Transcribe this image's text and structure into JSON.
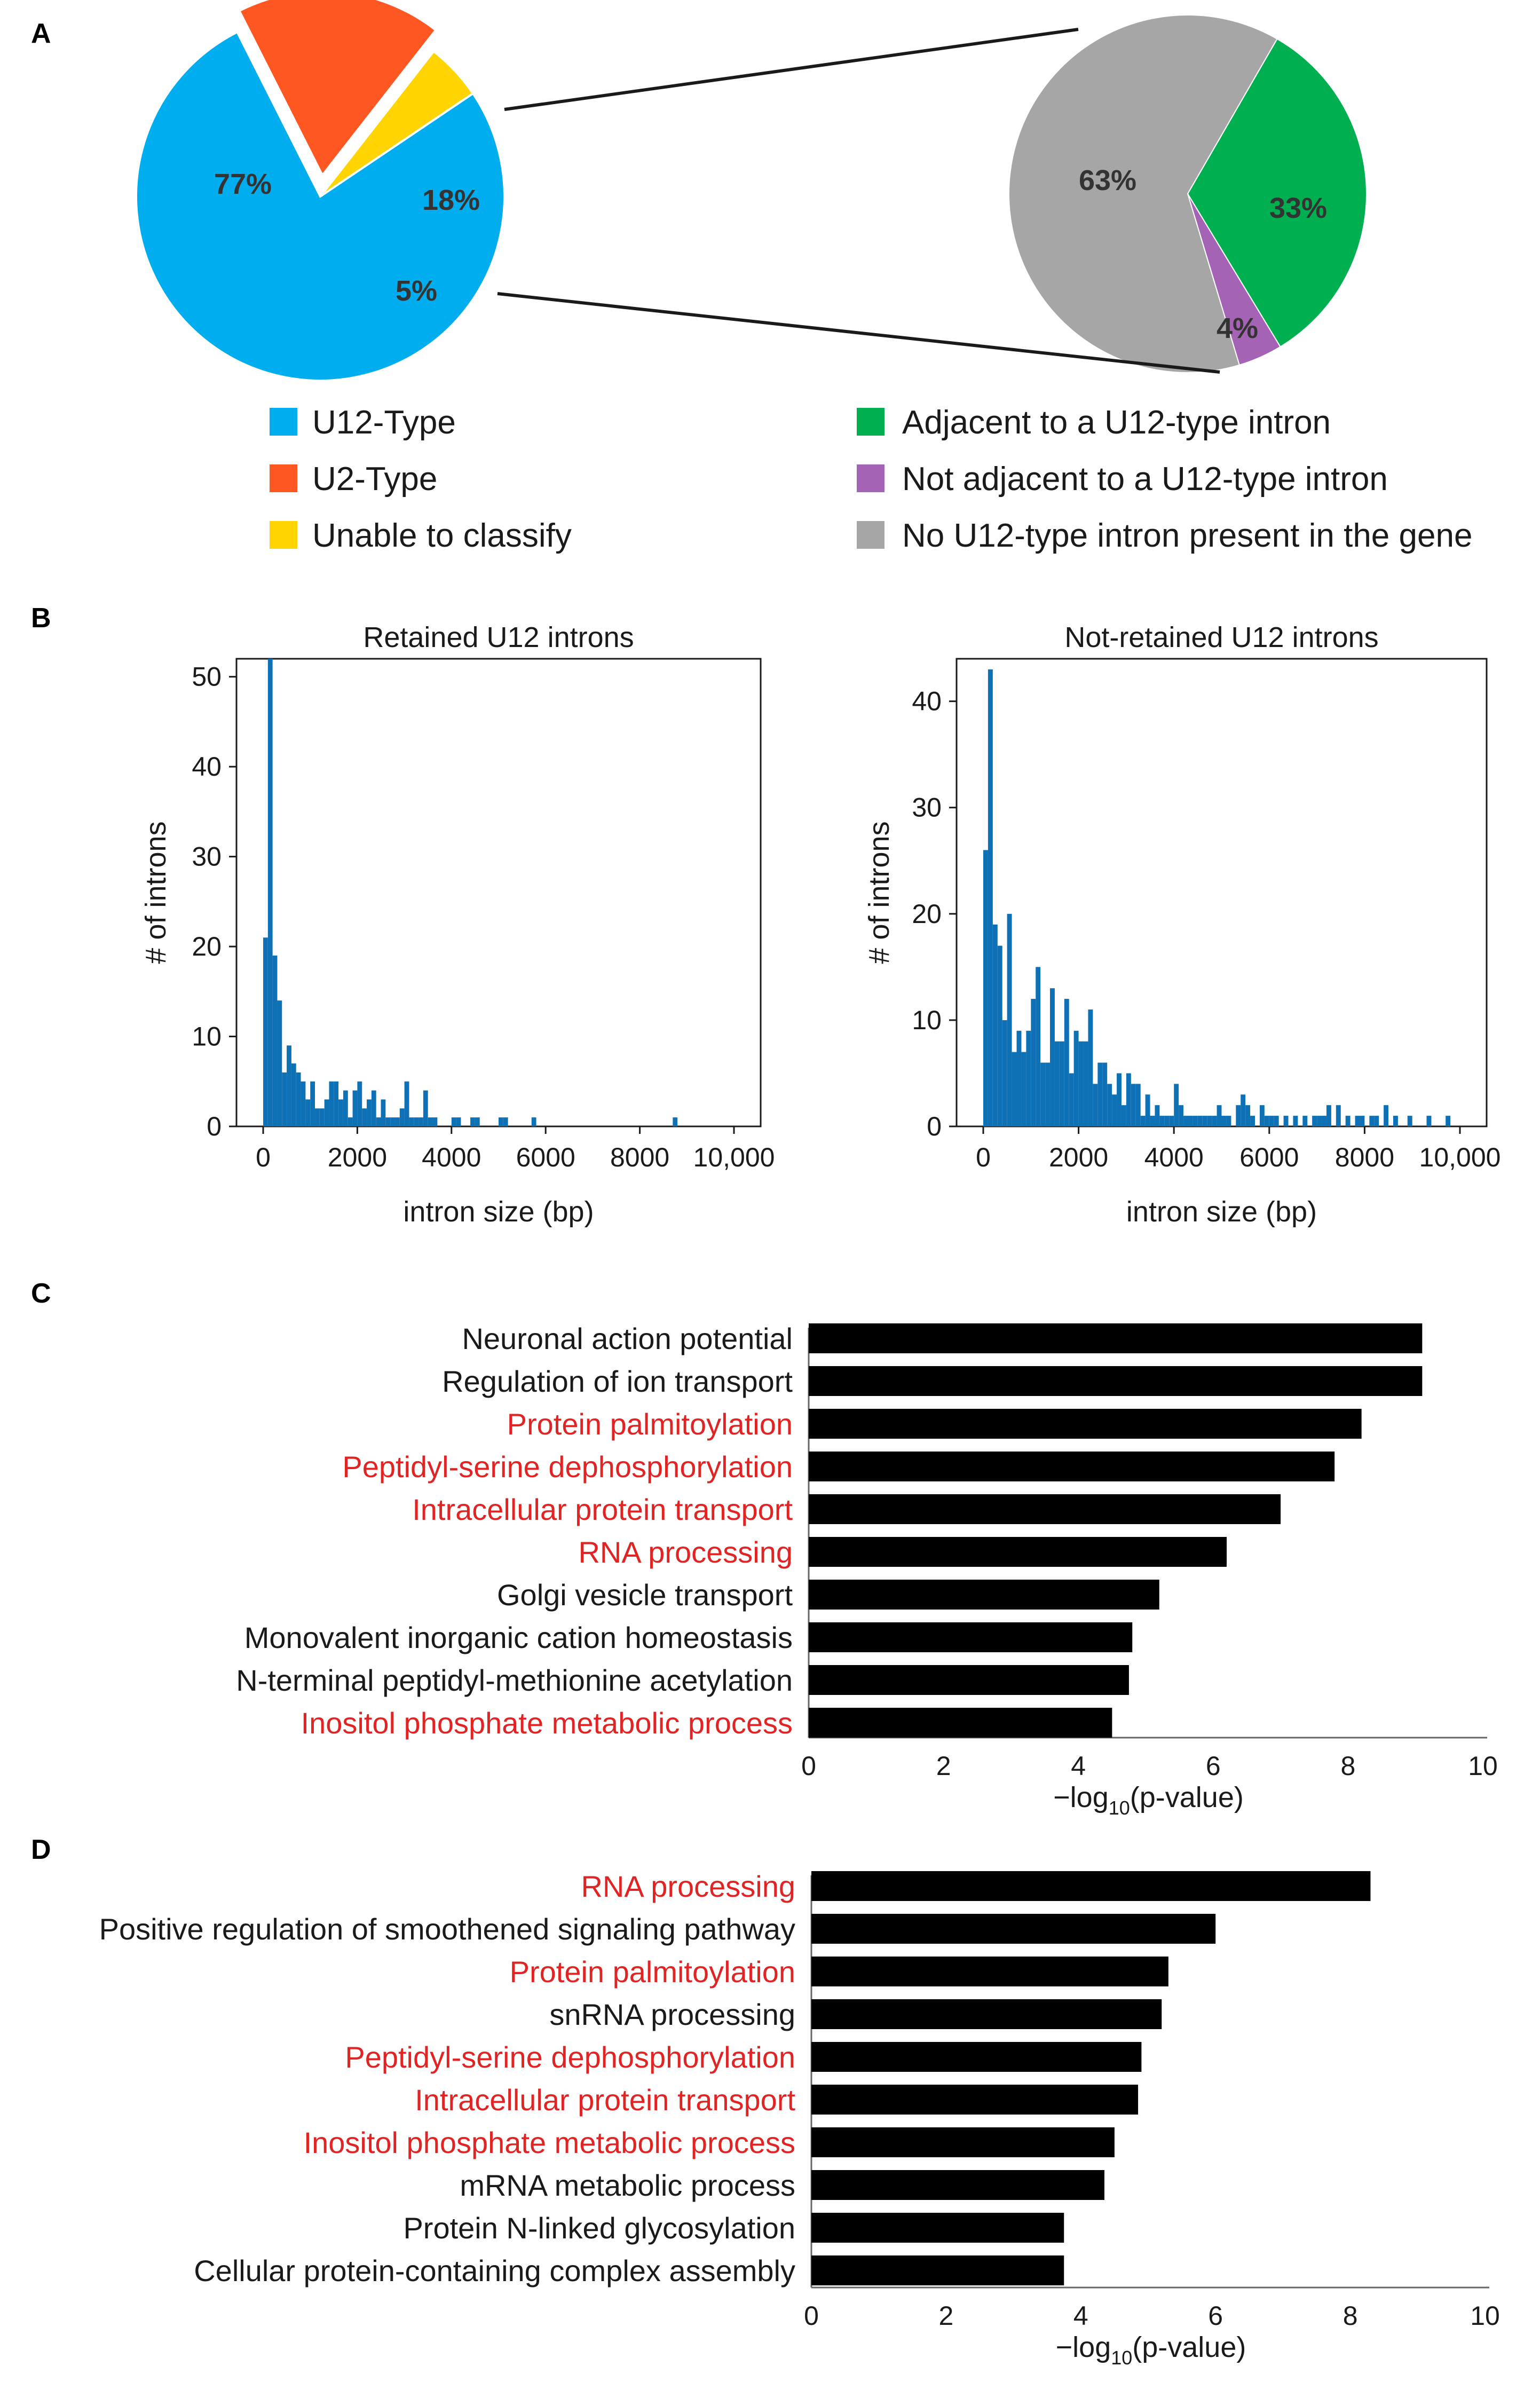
{
  "panels": {
    "A": "A",
    "B": "B",
    "C": "C",
    "D": "D"
  },
  "chart_data": [
    {
      "id": "A-left",
      "type": "pie",
      "title": "",
      "labels": [
        "U12-Type",
        "U2-Type",
        "Unable to classify"
      ],
      "values": [
        77,
        18,
        5
      ],
      "value_labels": [
        "77%",
        "18%",
        "5%"
      ],
      "colors": [
        "#00aeef",
        "#ff5722",
        "#ffd400"
      ],
      "exploded": "U2-Type"
    },
    {
      "id": "A-right",
      "type": "pie",
      "title": "",
      "labels": [
        "Adjacent to a U12-type intron",
        "Not adjacent to a U12-type intron",
        "No U12-type intron present in the gene"
      ],
      "values": [
        33,
        4,
        63
      ],
      "value_labels": [
        "33%",
        "4%",
        "63%"
      ],
      "colors": [
        "#00b050",
        "#a563b5",
        "#a6a6a6"
      ]
    },
    {
      "id": "B-left",
      "type": "bar",
      "title": "Retained U12 introns",
      "xlabel": "intron size (bp)",
      "ylabel": "# of introns",
      "xlim": [
        0,
        10000
      ],
      "ylim": [
        0,
        52
      ],
      "xticks": [
        0,
        2000,
        4000,
        6000,
        8000,
        10000
      ],
      "xtick_labels": [
        "0",
        "2000",
        "4000",
        "6000",
        "8000",
        "10,000"
      ],
      "yticks": [
        0,
        10,
        20,
        30,
        40,
        50
      ],
      "ytick_labels": [
        "0",
        "10",
        "20",
        "30",
        "40",
        "50"
      ],
      "bin_width": 100,
      "bin_starts": [
        0,
        100,
        200,
        300,
        400,
        500,
        600,
        700,
        800,
        900,
        1000,
        1100,
        1200,
        1300,
        1400,
        1500,
        1600,
        1700,
        1800,
        1900,
        2000,
        2100,
        2200,
        2300,
        2400,
        2500,
        2600,
        2700,
        2800,
        2900,
        3000,
        3100,
        3200,
        3300,
        3400,
        3500,
        3600,
        4000,
        4100,
        4400,
        4500,
        5000,
        5100,
        5700,
        8700
      ],
      "counts": [
        21,
        52,
        19,
        14,
        6,
        9,
        7,
        6,
        5,
        3,
        5,
        2,
        2,
        3,
        5,
        5,
        3,
        4,
        1,
        4,
        5,
        2,
        3,
        4,
        1,
        3,
        1,
        1,
        1,
        2,
        5,
        1,
        1,
        1,
        4,
        1,
        1,
        1,
        1,
        1,
        1,
        1,
        1,
        1,
        1
      ],
      "color": "#0f71b5"
    },
    {
      "id": "B-right",
      "type": "bar",
      "title": "Not-retained U12 introns",
      "xlabel": "intron size (bp)",
      "ylabel": "# of introns",
      "xlim": [
        0,
        10000
      ],
      "ylim": [
        0,
        44
      ],
      "xticks": [
        0,
        2000,
        4000,
        6000,
        8000,
        10000
      ],
      "xtick_labels": [
        "0",
        "2000",
        "4000",
        "6000",
        "8000",
        "10,000"
      ],
      "yticks": [
        0,
        10,
        20,
        30,
        40
      ],
      "ytick_labels": [
        "0",
        "10",
        "20",
        "30",
        "40"
      ],
      "bin_width": 100,
      "bin_starts": [
        0,
        100,
        200,
        300,
        400,
        500,
        600,
        700,
        800,
        900,
        1000,
        1100,
        1200,
        1300,
        1400,
        1500,
        1600,
        1700,
        1800,
        1900,
        2000,
        2100,
        2200,
        2300,
        2400,
        2500,
        2600,
        2700,
        2800,
        2900,
        3000,
        3100,
        3200,
        3300,
        3400,
        3500,
        3600,
        3700,
        3800,
        3900,
        4000,
        4100,
        4200,
        4300,
        4400,
        4500,
        4600,
        4700,
        4800,
        4900,
        5000,
        5100,
        5300,
        5400,
        5500,
        5600,
        5800,
        5900,
        6000,
        6100,
        6300,
        6500,
        6700,
        6900,
        7000,
        7100,
        7200,
        7400,
        7600,
        7800,
        7900,
        8100,
        8200,
        8400,
        8600,
        8900,
        9300,
        9700
      ],
      "counts": [
        26,
        43,
        19,
        17,
        10,
        20,
        7,
        9,
        7,
        9,
        12,
        15,
        6,
        6,
        13,
        8,
        8,
        12,
        5,
        9,
        8,
        8,
        11,
        4,
        6,
        6,
        4,
        3,
        5,
        2,
        5,
        4,
        4,
        1,
        3,
        1,
        2,
        1,
        1,
        1,
        4,
        2,
        1,
        1,
        1,
        1,
        1,
        1,
        1,
        2,
        1,
        1,
        2,
        3,
        2,
        1,
        2,
        1,
        1,
        1,
        1,
        1,
        1,
        1,
        1,
        1,
        2,
        2,
        1,
        1,
        1,
        1,
        1,
        2,
        1,
        1,
        1,
        1
      ],
      "color": "#0f71b5"
    },
    {
      "id": "C",
      "type": "bar",
      "orientation": "horizontal",
      "xlabel_main": "−log",
      "xlabel_sub": "10",
      "xlabel_tail": "(p-value)",
      "xlim": [
        0,
        10
      ],
      "xticks": [
        0,
        2,
        4,
        6,
        8,
        10
      ],
      "xtick_labels": [
        "0",
        "2",
        "4",
        "6",
        "8",
        "10"
      ],
      "categories": [
        "Neuronal action potential",
        "Regulation of ion transport",
        "Protein palmitoylation",
        "Peptidyl-serine dephosphorylation",
        "Intracellular protein transport",
        "RNA processing",
        "Golgi vesicle transport",
        "Monovalent inorganic cation homeostasis",
        "N-terminal peptidyl-methionine acetylation",
        "Inositol phosphate metabolic process"
      ],
      "highlighted": [
        false,
        false,
        true,
        true,
        true,
        true,
        false,
        false,
        false,
        true
      ],
      "values": [
        9.1,
        9.1,
        8.2,
        7.8,
        7.0,
        6.2,
        5.2,
        4.8,
        4.75,
        4.5
      ],
      "label_colors": {
        "normal": "#1a1a1a",
        "highlight": "#e02424"
      }
    },
    {
      "id": "D",
      "type": "bar",
      "orientation": "horizontal",
      "xlabel_main": "−log",
      "xlabel_sub": "10",
      "xlabel_tail": "(p-value)",
      "xlim": [
        0,
        10
      ],
      "xticks": [
        0,
        2,
        4,
        6,
        8,
        10
      ],
      "xtick_labels": [
        "0",
        "2",
        "4",
        "6",
        "8",
        "10"
      ],
      "categories": [
        "RNA processing",
        "Positive regulation of smoothened signaling pathway",
        "Protein palmitoylation",
        "snRNA processing",
        "Peptidyl-serine dephosphorylation",
        "Intracellular protein transport",
        "Inositol phosphate metabolic process",
        "mRNA metabolic process",
        "Protein N-linked glycosylation",
        "Cellular protein-containing complex assembly"
      ],
      "highlighted": [
        true,
        false,
        true,
        false,
        true,
        true,
        true,
        false,
        false,
        false
      ],
      "values": [
        8.3,
        6.0,
        5.3,
        5.2,
        4.9,
        4.85,
        4.5,
        4.35,
        3.75,
        3.75
      ],
      "label_colors": {
        "normal": "#1a1a1a",
        "highlight": "#e02424"
      }
    }
  ]
}
